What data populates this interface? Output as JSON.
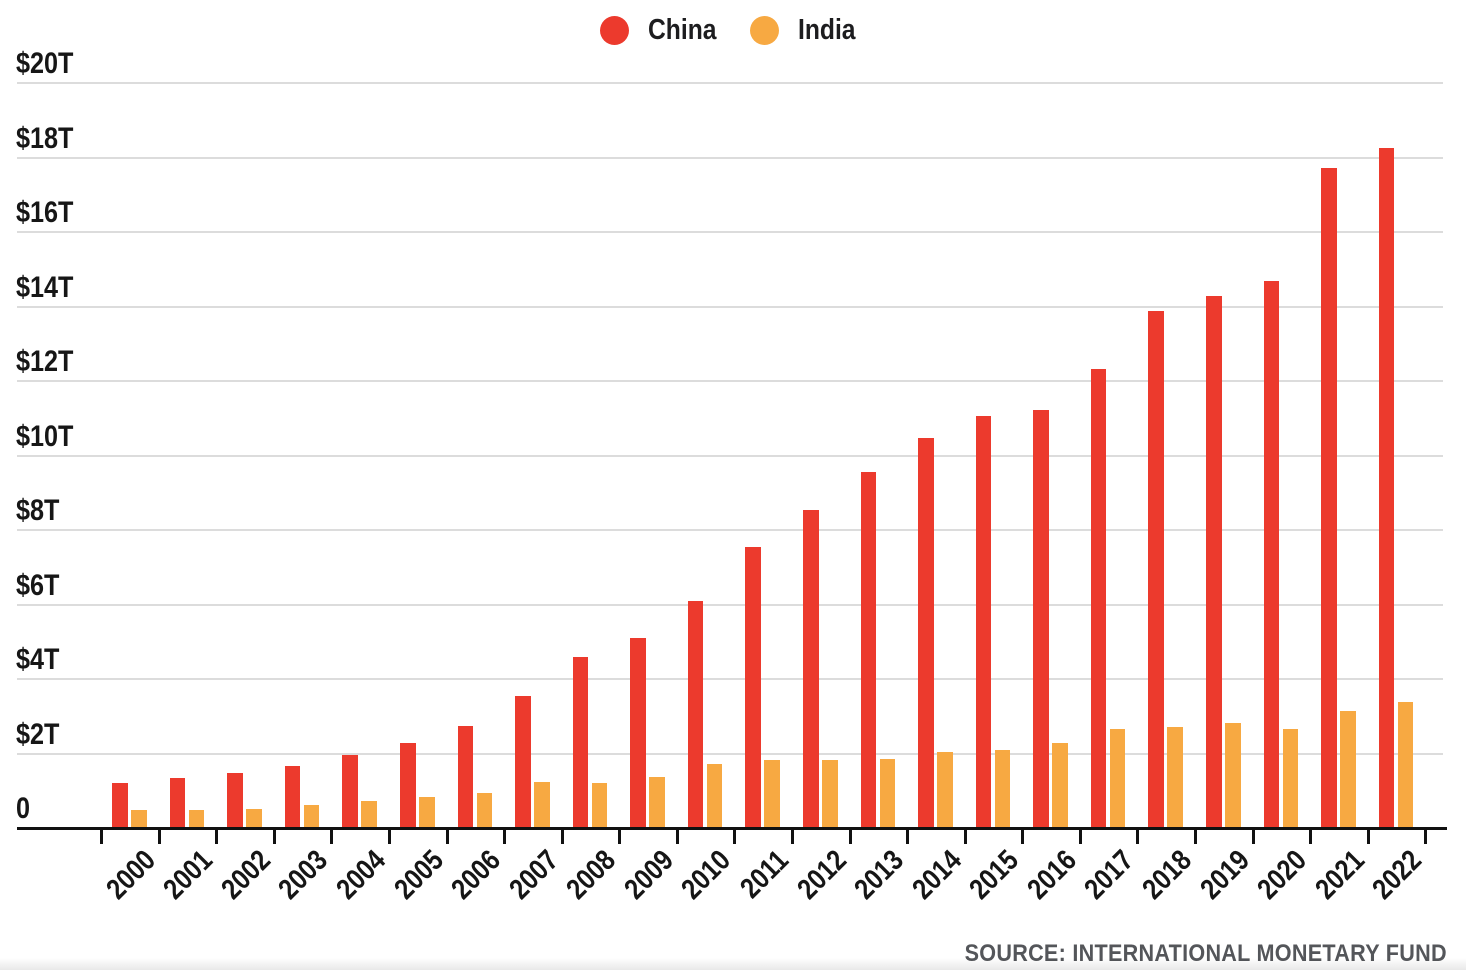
{
  "legend": {
    "items": [
      {
        "label": "China",
        "color": "#EC3A2D"
      },
      {
        "label": "India",
        "color": "#F7A942"
      }
    ]
  },
  "source_note": "SOURCE: INTERNATIONAL MONETARY FUND",
  "colors": {
    "china_bar": "#EC3A2D",
    "india_bar": "#F7A942",
    "gridline": "#dcdcdc",
    "axis": "#111111",
    "text": "#161616",
    "source_text": "#54565a",
    "background": "#ffffff"
  },
  "chart_data": {
    "type": "bar",
    "title": "",
    "xlabel": "",
    "ylabel": "",
    "unit": "trillions of USD",
    "grid": true,
    "legend_position": "top-center",
    "y_axis": {
      "min": 0,
      "max": 20,
      "step": 2,
      "tick_labels": [
        "0",
        "$2T",
        "$4T",
        "$6T",
        "$8T",
        "$10T",
        "$12T",
        "$14T",
        "$16T",
        "$18T",
        "$20T"
      ]
    },
    "categories": [
      "2000",
      "2001",
      "2002",
      "2003",
      "2004",
      "2005",
      "2006",
      "2007",
      "2008",
      "2009",
      "2010",
      "2011",
      "2012",
      "2013",
      "2014",
      "2015",
      "2016",
      "2017",
      "2018",
      "2019",
      "2020",
      "2021",
      "2022"
    ],
    "series": [
      {
        "name": "China",
        "color": "#EC3A2D",
        "values": [
          1.21,
          1.34,
          1.47,
          1.66,
          1.96,
          2.29,
          2.75,
          3.55,
          4.59,
          5.1,
          6.09,
          7.55,
          8.53,
          9.57,
          10.48,
          11.06,
          11.23,
          12.31,
          13.89,
          14.28,
          14.69,
          17.73,
          18.25
        ]
      },
      {
        "name": "India",
        "color": "#F7A942",
        "values": [
          0.47,
          0.49,
          0.52,
          0.61,
          0.72,
          0.83,
          0.95,
          1.24,
          1.22,
          1.37,
          1.71,
          1.82,
          1.83,
          1.86,
          2.04,
          2.1,
          2.29,
          2.65,
          2.7,
          2.83,
          2.67,
          3.15,
          3.39
        ]
      }
    ]
  }
}
